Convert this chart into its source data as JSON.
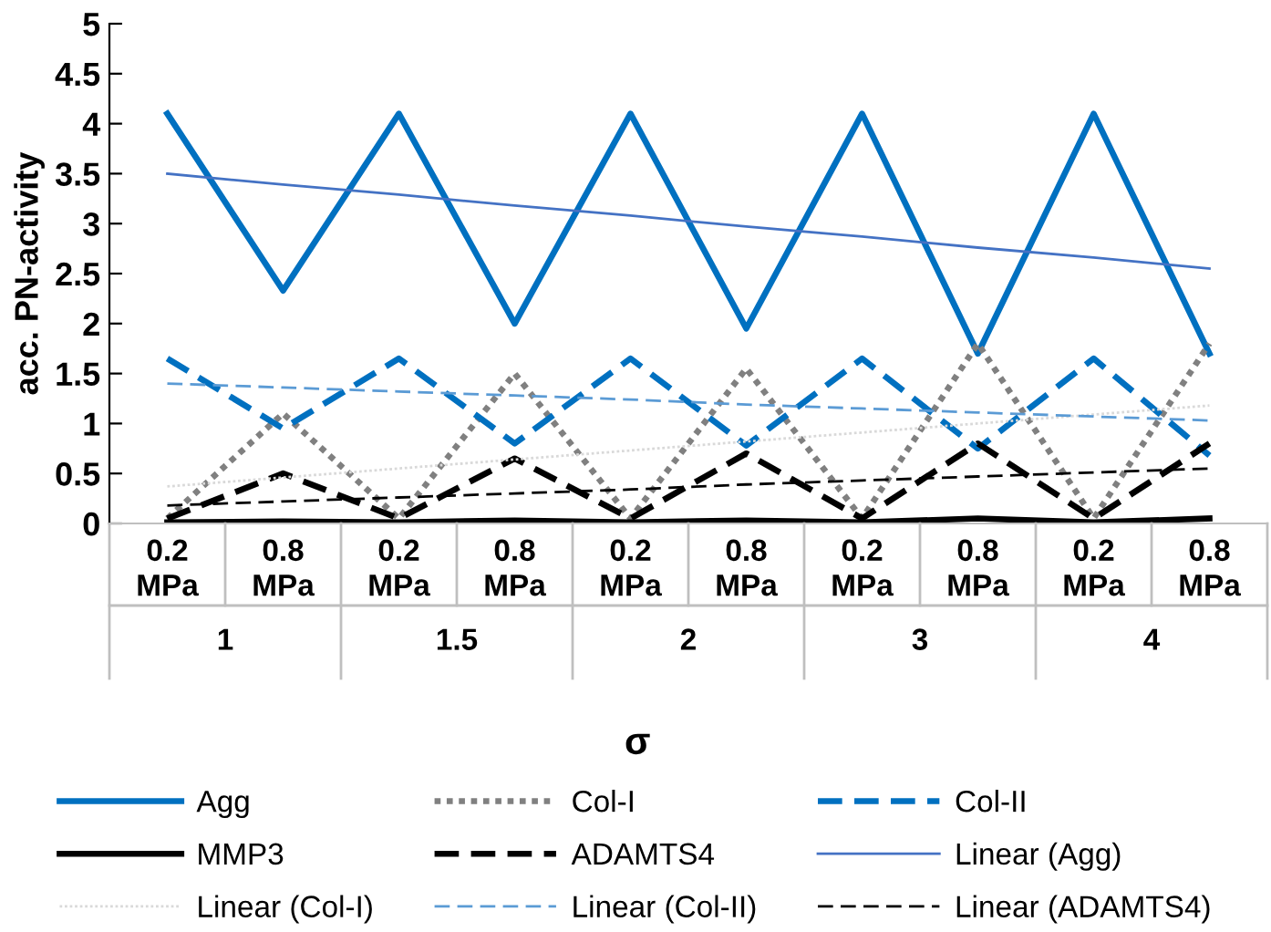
{
  "chart_data": {
    "type": "line",
    "ylabel": "acc. PN-activity",
    "xlabel": "σ",
    "categories": [
      "0.2\nMPa",
      "0.8\nMPa",
      "0.2\nMPa",
      "0.8\nMPa",
      "0.2\nMPa",
      "0.8\nMPa",
      "0.2\nMPa",
      "0.8\nMPa",
      "0.2\nMPa",
      "0.8\nMPa"
    ],
    "annotations": [
      "1",
      "1.5",
      "2",
      "3",
      "4"
    ],
    "ylim": [
      0,
      5
    ],
    "yticks": [
      0,
      0.5,
      1,
      1.5,
      2,
      2.5,
      3,
      3.5,
      4,
      4.5,
      5
    ],
    "grid": false,
    "legend": "bottom",
    "marker": "none",
    "series": [
      {
        "name": "Agg",
        "color": "#0070c0",
        "line_style": "solid",
        "values": [
          4.1,
          2.33,
          4.1,
          2.0,
          4.1,
          1.95,
          4.1,
          1.7,
          4.1,
          1.7
        ]
      },
      {
        "name": "Col-I",
        "color": "#808080",
        "line_style": "dotted",
        "values": [
          0.05,
          1.1,
          0.05,
          1.5,
          0.05,
          1.55,
          0.05,
          1.8,
          0.05,
          1.8
        ]
      },
      {
        "name": "Col-II",
        "color": "#0070c0",
        "line_style": "dashed",
        "values": [
          1.65,
          0.95,
          1.65,
          0.8,
          1.65,
          0.78,
          1.65,
          0.75,
          1.65,
          0.68
        ]
      },
      {
        "name": "MMP3",
        "color": "#000000",
        "line_style": "solid",
        "values": [
          0.01,
          0.02,
          0.01,
          0.03,
          0.01,
          0.03,
          0.01,
          0.05,
          0.01,
          0.05
        ]
      },
      {
        "name": "ADAMTS4",
        "color": "#000000",
        "line_style": "dashed",
        "values": [
          0.05,
          0.5,
          0.05,
          0.65,
          0.05,
          0.7,
          0.05,
          0.8,
          0.05,
          0.8
        ]
      },
      {
        "name": "Linear (Agg)",
        "color": "#4472c4",
        "line_style": "solid",
        "values": [
          3.5,
          3.39,
          3.29,
          3.18,
          3.08,
          2.97,
          2.87,
          2.76,
          2.66,
          2.55
        ]
      },
      {
        "name": "Linear (Col-I)",
        "color": "#d9d9d9",
        "line_style": "dotted",
        "values": [
          0.37,
          0.46,
          0.55,
          0.64,
          0.73,
          0.82,
          0.91,
          1.0,
          1.09,
          1.18
        ]
      },
      {
        "name": "Linear (Col-II)",
        "color": "#5b9bd5",
        "line_style": "dashed",
        "values": [
          1.4,
          1.36,
          1.32,
          1.28,
          1.24,
          1.19,
          1.15,
          1.11,
          1.07,
          1.03
        ]
      },
      {
        "name": "Linear (ADAMTS4)",
        "color": "#000000",
        "line_style": "dashed",
        "values": [
          0.18,
          0.22,
          0.26,
          0.3,
          0.34,
          0.39,
          0.43,
          0.47,
          0.51,
          0.55
        ]
      }
    ]
  }
}
